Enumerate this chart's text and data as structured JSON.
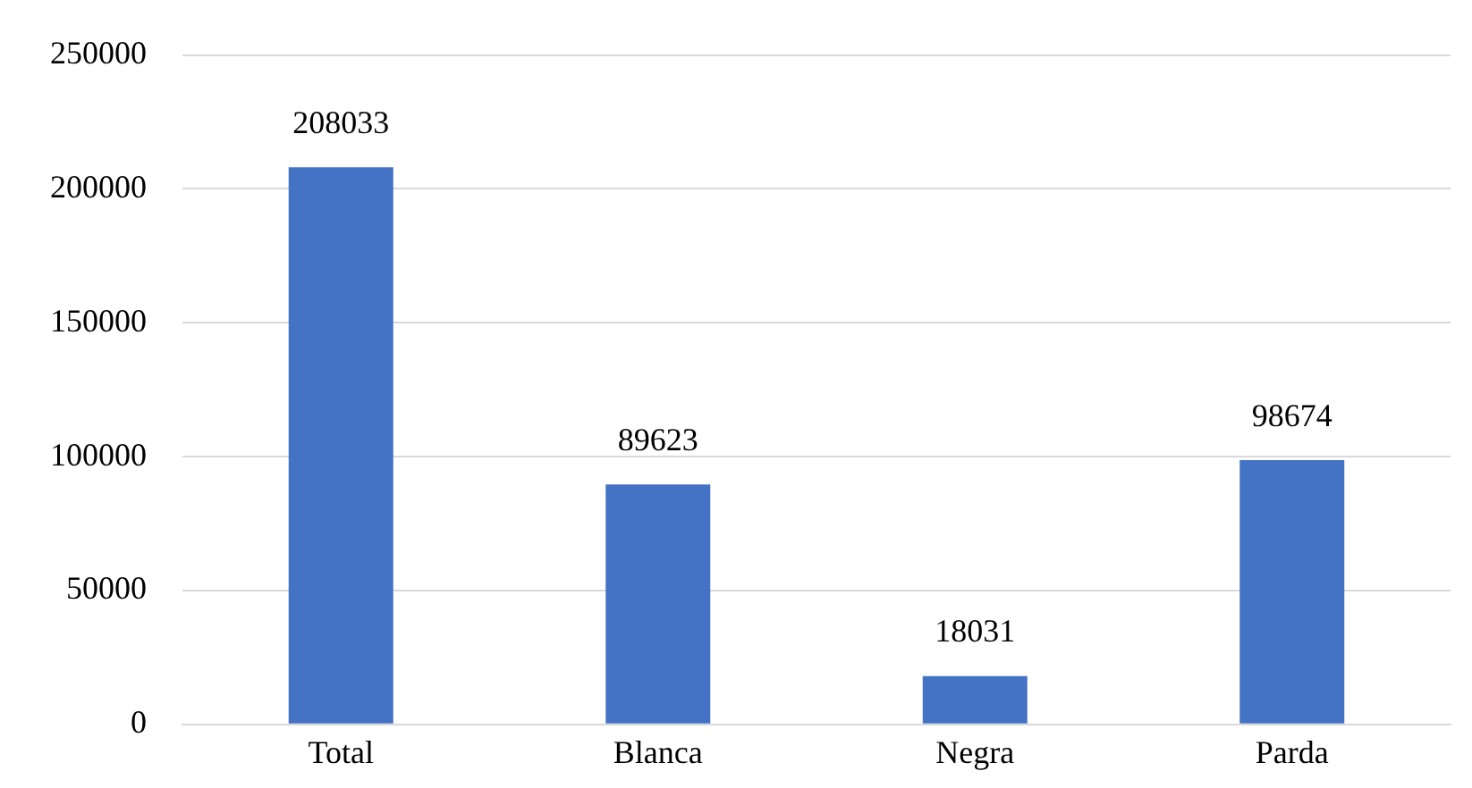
{
  "chart_data": {
    "type": "bar",
    "categories": [
      "Total",
      "Blanca",
      "Negra",
      "Parda"
    ],
    "values": [
      208033,
      89623,
      18031,
      98674
    ],
    "color": "#4472c4",
    "ylim": [
      0,
      250000
    ],
    "yticks": [
      0,
      50000,
      100000,
      150000,
      200000,
      250000
    ],
    "grid": "y",
    "data_labels": true
  }
}
